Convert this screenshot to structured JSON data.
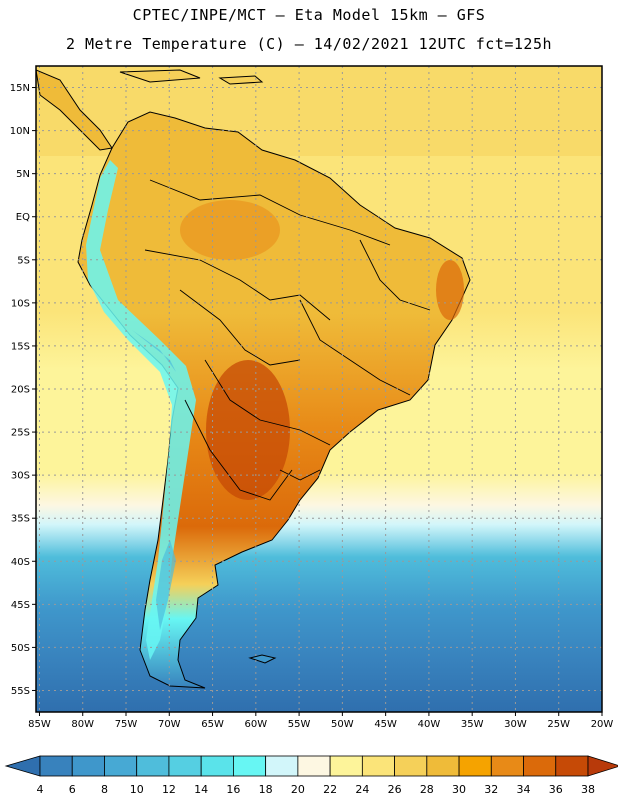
{
  "header": {
    "title_line1": "CPTEC/INPE/MCT –  Eta Model 15km – GFS",
    "title_line2": "2 Metre Temperature (C) – 14/02/2021 12UTC fct=125h"
  },
  "map": {
    "lat_labels": [
      "15N",
      "10N",
      "5N",
      "EQ",
      "5S",
      "10S",
      "15S",
      "20S",
      "25S",
      "30S",
      "35S",
      "40S",
      "45S",
      "50S",
      "55S"
    ],
    "lon_labels": [
      "85W",
      "80W",
      "75W",
      "70W",
      "65W",
      "60W",
      "55W",
      "50W",
      "45W",
      "40W",
      "35W",
      "30W",
      "25W",
      "20W"
    ],
    "lat_values": [
      15,
      10,
      5,
      0,
      -5,
      -10,
      -15,
      -20,
      -25,
      -30,
      -35,
      -40,
      -45,
      -50,
      -55
    ],
    "lon_values": [
      -85,
      -80,
      -75,
      -70,
      -65,
      -60,
      -55,
      -50,
      -45,
      -40,
      -35,
      -30,
      -25,
      -20
    ],
    "lon_range": [
      -85.4,
      -20
    ],
    "lat_range": [
      -57.5,
      17.5
    ]
  },
  "colorbar": {
    "labels": [
      "4",
      "6",
      "8",
      "10",
      "12",
      "14",
      "16",
      "18",
      "20",
      "22",
      "24",
      "26",
      "28",
      "30",
      "32",
      "34",
      "36",
      "38"
    ],
    "colors": [
      "#2f6fae",
      "#3882bd",
      "#3f97cb",
      "#47a9d4",
      "#4fbddb",
      "#55cfe2",
      "#5ae3ea",
      "#67f6f3",
      "#d2f6fa",
      "#fdf7e2",
      "#fdf49a",
      "#fbe479",
      "#f5d059",
      "#efbb39",
      "#f5a300",
      "#e88a17",
      "#db6a0a",
      "#c64a06",
      "#b83a0a"
    ]
  }
}
